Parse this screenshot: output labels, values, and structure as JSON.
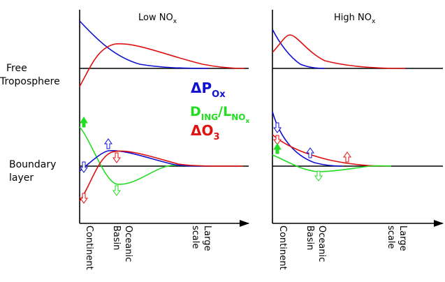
{
  "panels": {
    "left": {
      "title_main": "Low NO",
      "title_sub": "x"
    },
    "right": {
      "title_main": "High NO",
      "title_sub": "x"
    }
  },
  "layers": {
    "free_line1": "Free",
    "free_line2": "Troposphere",
    "boundary_line1": "Boundary",
    "boundary_line2": "layer"
  },
  "legend": {
    "p_ox": {
      "delta": "Δ",
      "main": "P",
      "sub": "Ox",
      "color": "#1010d0"
    },
    "ding": {
      "main": "D",
      "sub": "ING",
      "slash": "/L",
      "sub2": "NO",
      "sub3": "x",
      "color": "#22dd22"
    },
    "o3": {
      "delta": "Δ",
      "main": "O",
      "sub": "3",
      "color": "#dd1111"
    }
  },
  "x_labels": {
    "left": [
      "Continent",
      "Basin",
      "Oceanic",
      "scale",
      "Large"
    ],
    "right": [
      "Continent",
      "Basin",
      "Oceanic",
      "scale",
      "Large"
    ]
  },
  "colors": {
    "blue": "#1010d0",
    "red": "#dd1111",
    "green": "#22dd22",
    "axis": "#000000"
  }
}
